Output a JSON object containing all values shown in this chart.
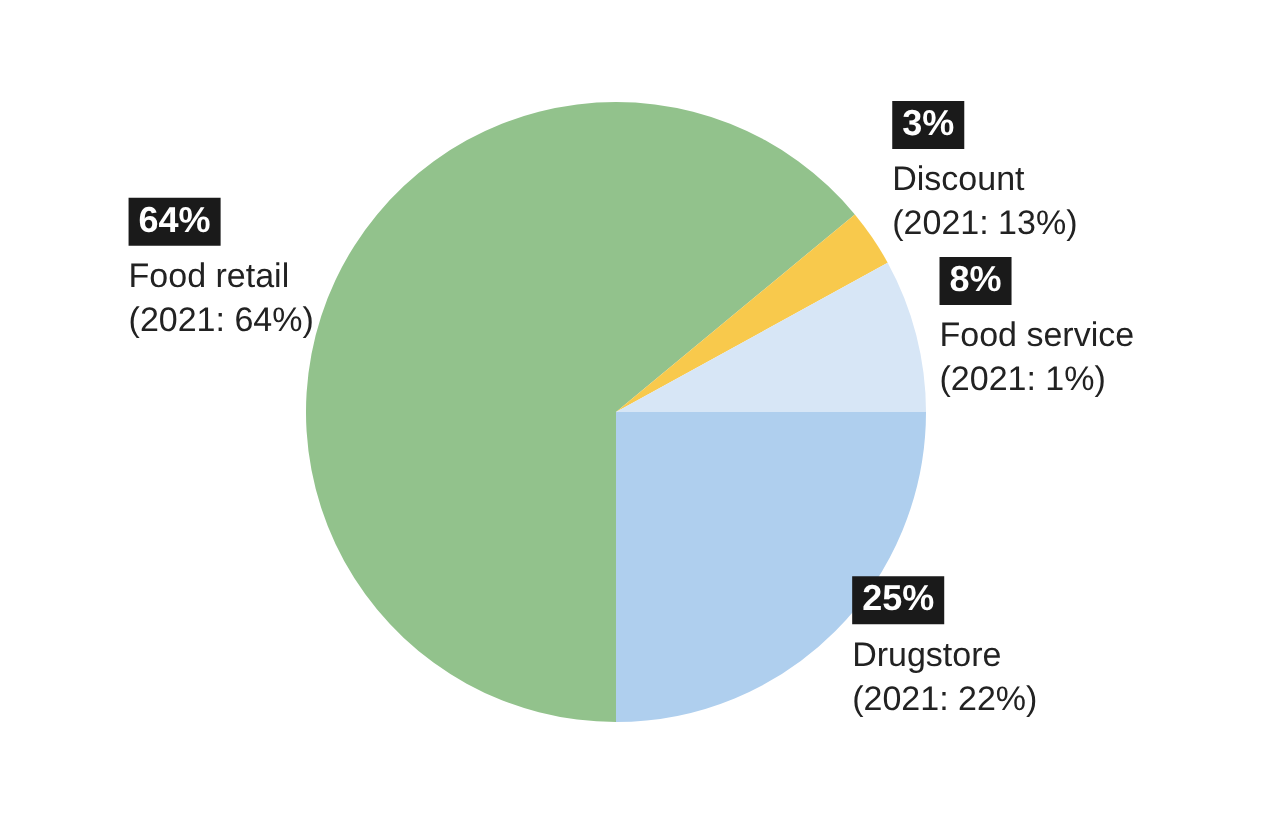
{
  "chart_data": {
    "type": "pie",
    "categories": [
      "Drugstore",
      "Food retail",
      "Discount",
      "Food service"
    ],
    "values": [
      25,
      64,
      3,
      8
    ],
    "colors": [
      "#afcfee",
      "#92c28c",
      "#f8c94c",
      "#d7e6f6"
    ],
    "value_labels": [
      "25%",
      "64%",
      "3%",
      "8%"
    ],
    "annotations": [
      "(2021: 22%)",
      "(2021: 64%)",
      "(2021: 13%)",
      "(2021: 1%)"
    ],
    "legend": false
  }
}
